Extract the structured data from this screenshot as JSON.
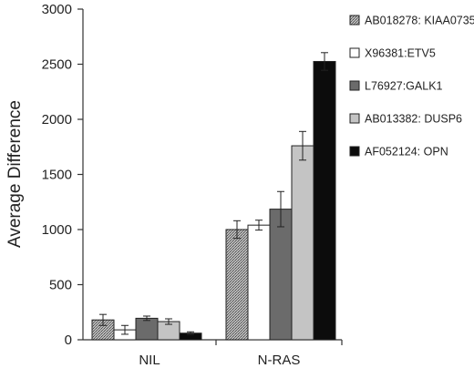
{
  "chart_data": {
    "type": "bar",
    "title": "",
    "xlabel": "",
    "ylabel": "Average Difference",
    "ylim": [
      0,
      3000
    ],
    "yticks": [
      0,
      500,
      1000,
      1500,
      2000,
      2500,
      3000
    ],
    "categories": [
      "NIL",
      "N-RAS"
    ],
    "grid": false,
    "legend_position": "right",
    "series": [
      {
        "name": "AB018278: KIAA0735",
        "values": [
          180,
          1000
        ],
        "errors": [
          50,
          80
        ],
        "color": "#9a9a9a",
        "pattern": "crosshatch"
      },
      {
        "name": "X96381:ETV5",
        "values": [
          90,
          1040
        ],
        "errors": [
          40,
          45
        ],
        "color": "#ffffff",
        "pattern": "none"
      },
      {
        "name": "L76927:GALK1",
        "values": [
          195,
          1185
        ],
        "errors": [
          20,
          160
        ],
        "color": "#6b6b6b",
        "pattern": "none"
      },
      {
        "name": "AB013382: DUSP6",
        "values": [
          165,
          1760
        ],
        "errors": [
          25,
          130
        ],
        "color": "#c4c4c4",
        "pattern": "none"
      },
      {
        "name": "AF052124: OPN",
        "values": [
          60,
          2525
        ],
        "errors": [
          12,
          80
        ],
        "color": "#0c0c0c",
        "pattern": "none"
      }
    ]
  }
}
